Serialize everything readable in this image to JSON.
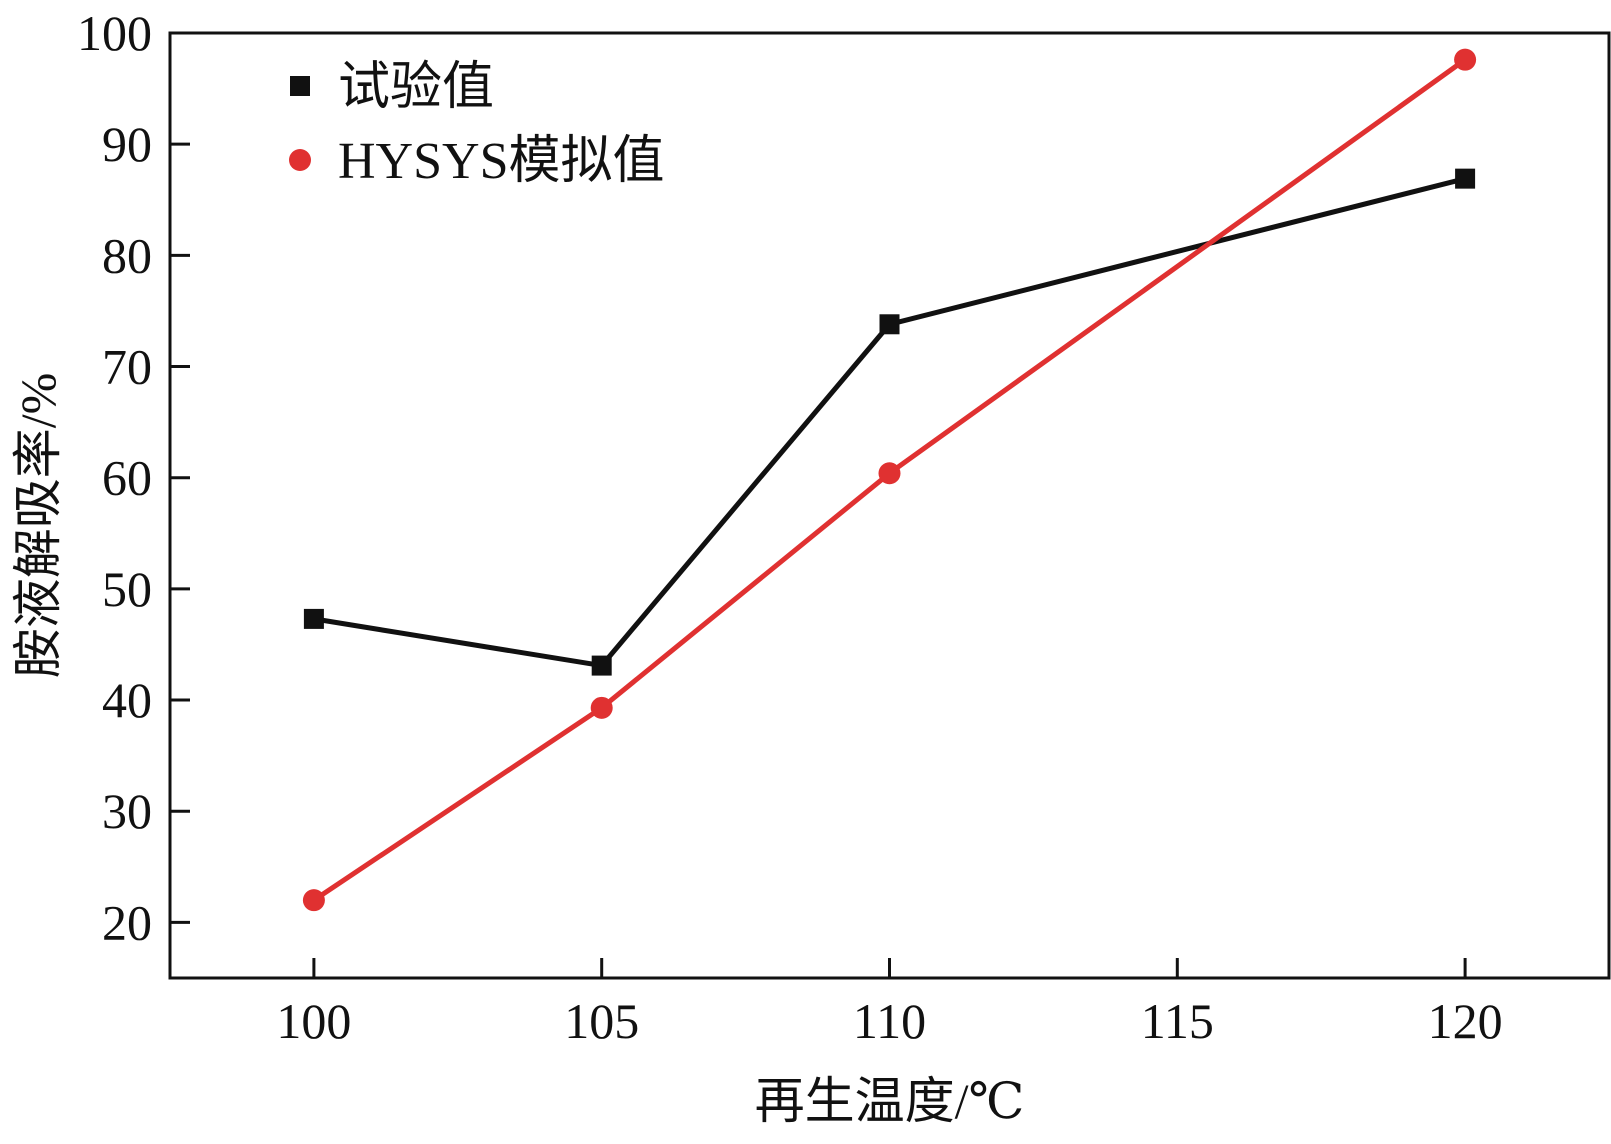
{
  "chart_data": {
    "type": "line",
    "xlabel": "再生温度/℃",
    "ylabel": "胺液解吸率/%",
    "xlim": [
      97.5,
      122.5
    ],
    "ylim": [
      15,
      100
    ],
    "x_ticks": [
      100,
      105,
      110,
      115,
      120
    ],
    "y_ticks": [
      20,
      30,
      40,
      50,
      60,
      70,
      80,
      90,
      100
    ],
    "grid": false,
    "legend_position": "top-left",
    "series": [
      {
        "name": "试验值",
        "color": "#111111",
        "marker": "square",
        "x": [
          100,
          105,
          110,
          120
        ],
        "y": [
          47.3,
          43.1,
          73.8,
          86.9
        ]
      },
      {
        "name": "HYSYS模拟值",
        "color": "#e03131",
        "marker": "circle",
        "x": [
          100,
          105,
          110,
          120
        ],
        "y": [
          22.0,
          39.3,
          60.4,
          97.6
        ]
      }
    ]
  }
}
